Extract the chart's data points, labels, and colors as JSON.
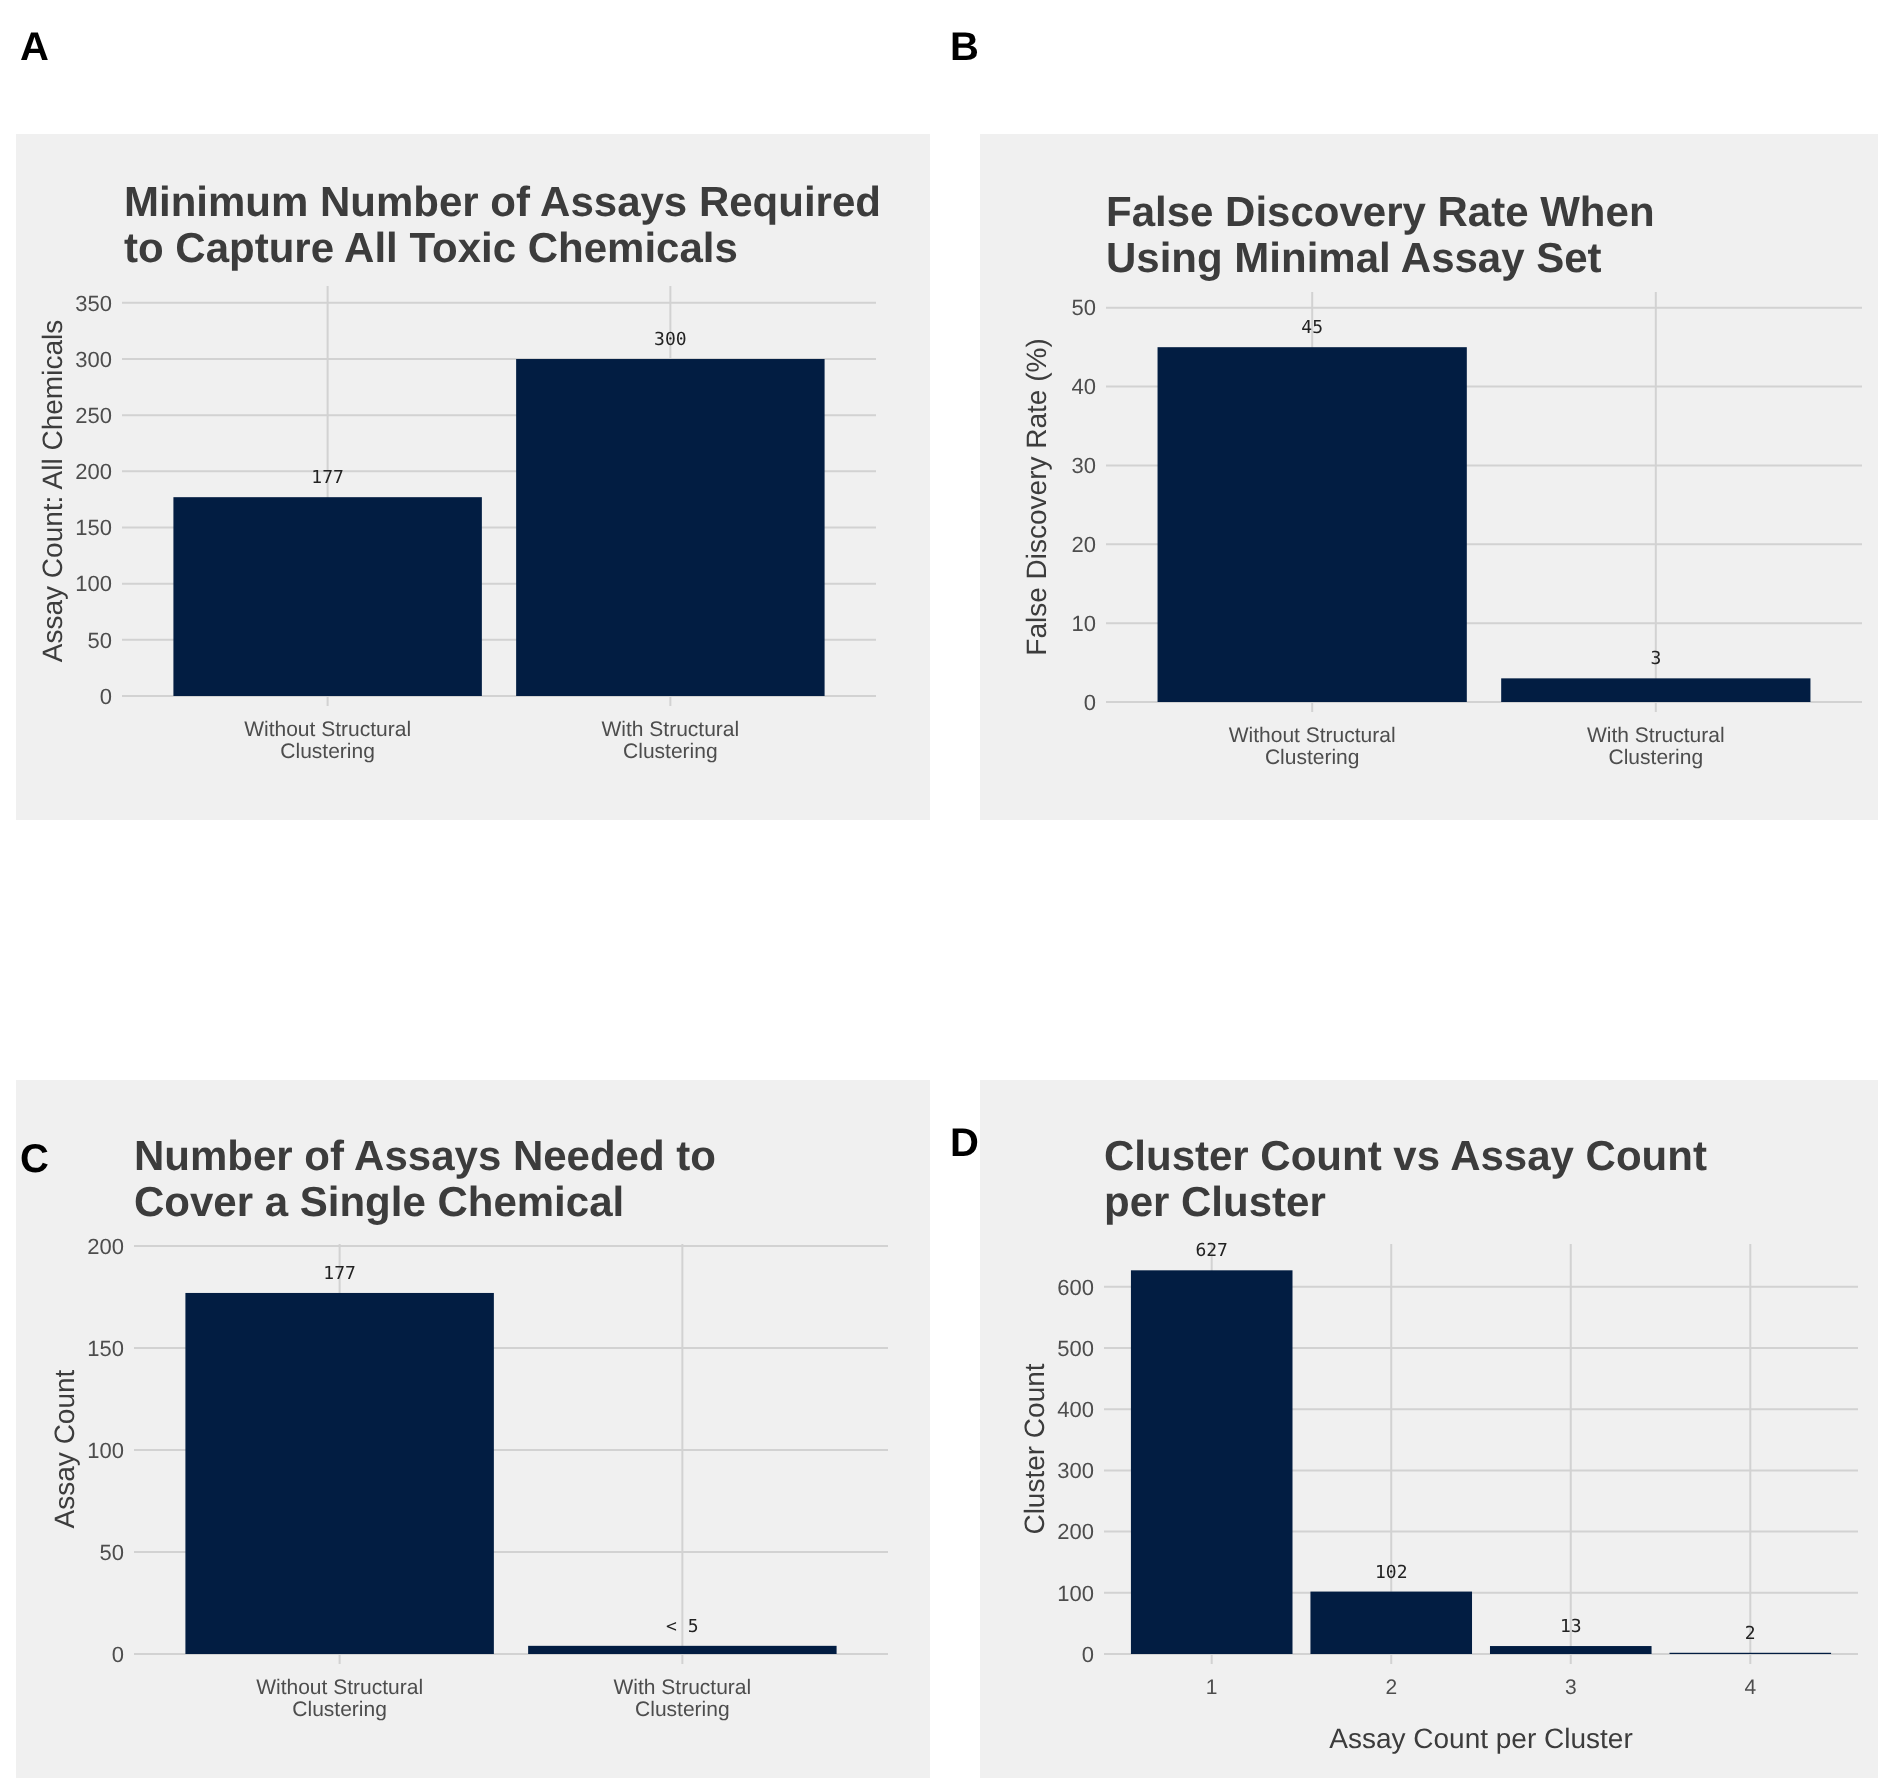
{
  "chart_data": [
    {
      "type": "bar",
      "title": "Minimum Number of Assays Required to Capture All Toxic Chemicals",
      "ylabel": "Assay Count: All Chemicals",
      "annotations": [
        "A"
      ],
      "categories": [
        "Without Structural Clustering",
        "With Structural Clustering"
      ],
      "values": [
        177,
        300
      ],
      "color": "#021d42",
      "ylim": [
        0,
        365
      ],
      "yticks": [
        0,
        50,
        100,
        150,
        200,
        250,
        300,
        350
      ],
      "grid": true,
      "data_labels": true
    },
    {
      "type": "bar",
      "title": "False Discovery Rate When Using Minimal Assay Set",
      "ylabel": "False Discovery Rate (%)",
      "annotations": [
        "B"
      ],
      "categories": [
        "Without Structural Clustering",
        "With Structural Clustering"
      ],
      "values": [
        45,
        3
      ],
      "color": "#021d42",
      "ylim": [
        0,
        52
      ],
      "yticks": [
        0,
        10,
        20,
        30,
        40,
        50
      ],
      "grid": true,
      "data_labels": true
    },
    {
      "type": "bar",
      "title": "Number of Assays Needed to Cover a Single Chemical",
      "ylabel": "Assay Count",
      "annotations": [
        "C"
      ],
      "categories": [
        "Without Structural Clustering",
        "With Structural Clustering"
      ],
      "values": [
        177,
        4
      ],
      "value_labels": [
        "177",
        "< 5"
      ],
      "color": "#021d42",
      "ylim": [
        0,
        201
      ],
      "yticks": [
        0,
        50,
        100,
        150,
        200
      ],
      "grid": true
    },
    {
      "type": "bar",
      "title": "Cluster Count vs Assay Count per Cluster",
      "xlabel": "Assay Count per Cluster",
      "ylabel": "Cluster Count",
      "annotations": [
        "D"
      ],
      "categories": [
        "1",
        "2",
        "3",
        "4"
      ],
      "values": [
        627,
        102,
        13,
        2
      ],
      "color": "#021d42",
      "ylim": [
        0,
        670
      ],
      "yticks": [
        0,
        100,
        200,
        300,
        400,
        500,
        600
      ],
      "grid": true,
      "data_labels": true
    }
  ]
}
